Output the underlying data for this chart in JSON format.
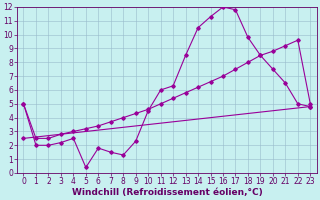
{
  "xlabel": "Windchill (Refroidissement éolien,°C)",
  "background_color": "#c8f0f0",
  "line_color": "#990099",
  "xlim": [
    -0.5,
    23.5
  ],
  "ylim": [
    0,
    12
  ],
  "xticks": [
    0,
    1,
    2,
    3,
    4,
    5,
    6,
    7,
    8,
    9,
    10,
    11,
    12,
    13,
    14,
    15,
    16,
    17,
    18,
    19,
    20,
    21,
    22,
    23
  ],
  "yticks": [
    0,
    1,
    2,
    3,
    4,
    5,
    6,
    7,
    8,
    9,
    10,
    11,
    12
  ],
  "line1_x": [
    0,
    1,
    2,
    3,
    4,
    5,
    6,
    7,
    8,
    9,
    10,
    11,
    12,
    13,
    14,
    15,
    16,
    17,
    18,
    19,
    20,
    21,
    22,
    23
  ],
  "line1_y": [
    5,
    2,
    2,
    2.2,
    2.5,
    0.4,
    1.8,
    1.5,
    1.3,
    2.3,
    4.5,
    6.0,
    6.3,
    8.5,
    10.5,
    11.3,
    12.0,
    11.8,
    9.8,
    8.5,
    7.5,
    6.5,
    5.0,
    4.8
  ],
  "line2_x": [
    0,
    1,
    2,
    3,
    4,
    5,
    6,
    7,
    8,
    9,
    10,
    11,
    12,
    13,
    14,
    15,
    16,
    17,
    18,
    19,
    20,
    21,
    22,
    23
  ],
  "line2_y": [
    5,
    2.5,
    2.5,
    2.8,
    3.0,
    3.2,
    3.4,
    3.7,
    4.0,
    4.3,
    4.6,
    5.0,
    5.4,
    5.8,
    6.2,
    6.6,
    7.0,
    7.5,
    8.0,
    8.5,
    8.8,
    9.2,
    9.6,
    5.0
  ],
  "line3_x": [
    0,
    23
  ],
  "line3_y": [
    2.5,
    4.8
  ],
  "grid_color": "#99bbcc",
  "marker": "D",
  "marker_size": 1.8,
  "tick_fontsize": 5.5,
  "xlabel_fontsize": 6.5
}
